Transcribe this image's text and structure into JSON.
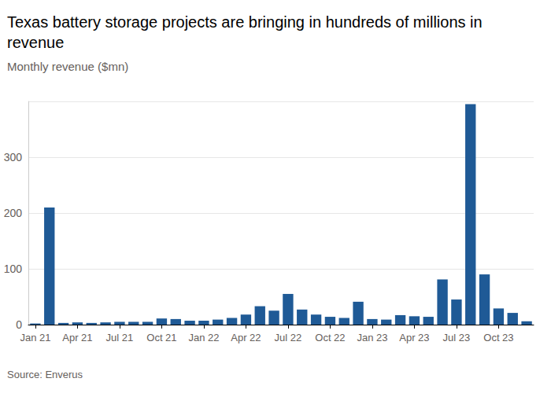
{
  "chart_data": {
    "type": "bar",
    "title": "Texas battery storage projects are bringing in hundreds of millions in revenue",
    "subtitle": "Monthly revenue ($mn)",
    "source": "Source: Enverus",
    "categories": [
      "Jan 21",
      null,
      null,
      "Apr 21",
      null,
      null,
      "Jul 21",
      null,
      null,
      "Oct 21",
      null,
      null,
      "Jan 22",
      null,
      null,
      "Apr 22",
      null,
      null,
      "Jul 22",
      null,
      null,
      "Oct 22",
      null,
      null,
      "Jan 23",
      null,
      null,
      "Apr 23",
      null,
      null,
      "Jul 23",
      null,
      null,
      "Oct 23",
      null,
      null
    ],
    "values": [
      2,
      210,
      3,
      4,
      3,
      4,
      5,
      5,
      5,
      11,
      10,
      7,
      7,
      9,
      12,
      18,
      33,
      25,
      55,
      27,
      18,
      14,
      12,
      41,
      10,
      9,
      17,
      15,
      14,
      81,
      45,
      395,
      90,
      29,
      21,
      6
    ],
    "color": "#1f5a96",
    "ylim": [
      0,
      400
    ],
    "yticks": [
      0,
      100,
      200,
      300
    ],
    "grid": true
  }
}
